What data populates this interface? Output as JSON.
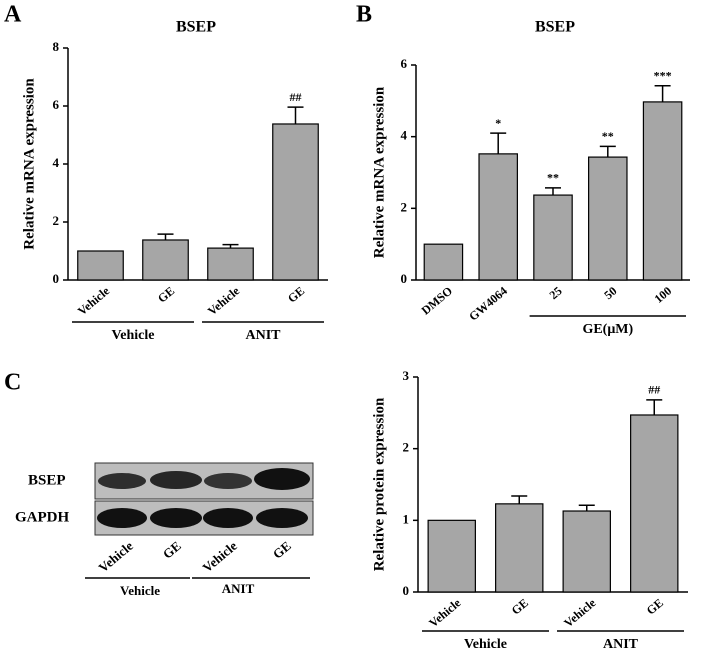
{
  "panels": [
    "A",
    "B",
    "C"
  ],
  "blot": {
    "rows": [
      "BSEP",
      "GAPDH"
    ],
    "lanes": [
      "Vehicle",
      "GE",
      "Vehicle",
      "GE"
    ],
    "groups": [
      "Vehicle",
      "ANIT"
    ]
  },
  "chart_data": [
    {
      "type": "bar",
      "title": "BSEP",
      "y_label": "Relative mRNA expression",
      "categories": [
        "Vehicle",
        "GE",
        "Vehicle",
        "GE"
      ],
      "values": [
        1.0,
        1.38,
        1.1,
        5.38
      ],
      "errors": [
        null,
        0.2,
        0.12,
        0.58
      ],
      "annotations": [
        null,
        null,
        null,
        "##"
      ],
      "groups": [
        "Vehicle",
        "ANIT"
      ],
      "color": "#a6a6a6",
      "ylim": [
        0,
        8
      ],
      "yticks": [
        0,
        2,
        4,
        6,
        8
      ]
    },
    {
      "type": "bar",
      "title": "BSEP",
      "y_label": "Relative mRNA expression",
      "categories": [
        "DMSO",
        "GW4064",
        "25",
        "50",
        "100"
      ],
      "values": [
        1.0,
        3.52,
        2.37,
        3.43,
        4.97
      ],
      "errors": [
        null,
        0.58,
        0.2,
        0.3,
        0.45
      ],
      "annotations": [
        null,
        "*",
        "**",
        "**",
        "***"
      ],
      "groups": [
        "GE(μM)"
      ],
      "color": "#a6a6a6",
      "ylim": [
        0,
        6
      ],
      "yticks": [
        0,
        2,
        4,
        6
      ]
    },
    {
      "type": "bar",
      "y_label": "Relative protein expression",
      "categories": [
        "Vehicle",
        "GE",
        "Vehicle",
        "GE"
      ],
      "values": [
        1.0,
        1.23,
        1.13,
        2.47
      ],
      "errors": [
        null,
        0.11,
        0.08,
        0.21
      ],
      "annotations": [
        null,
        null,
        null,
        "##"
      ],
      "groups": [
        "Vehicle",
        "ANIT"
      ],
      "color": "#a6a6a6",
      "ylim": [
        0,
        3
      ],
      "yticks": [
        0,
        1,
        2,
        3
      ]
    }
  ]
}
